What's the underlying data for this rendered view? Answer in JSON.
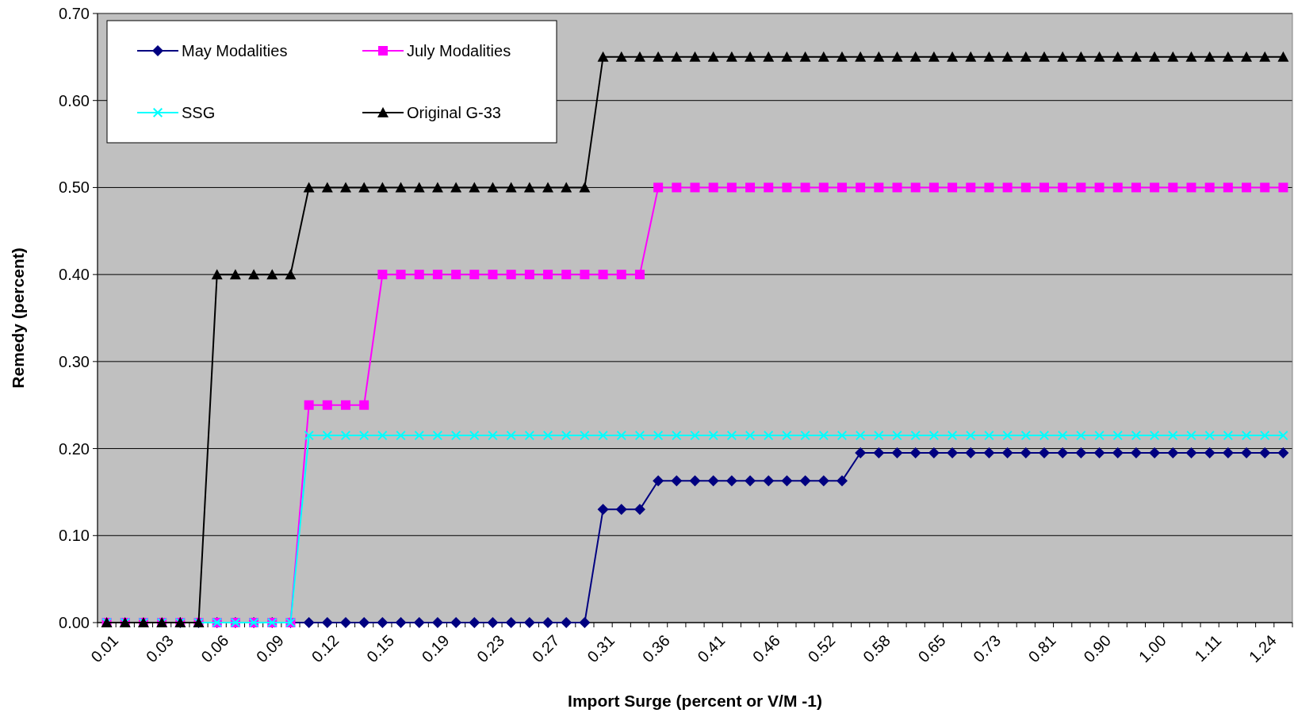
{
  "chart_data": {
    "type": "line",
    "xlabel": "Import Surge (percent or V/M -1)",
    "ylabel": "Remedy (percent)",
    "categories": [
      "0.01",
      null,
      null,
      "0.03",
      null,
      null,
      "0.06",
      null,
      null,
      "0.09",
      null,
      null,
      "0.12",
      null,
      null,
      "0.15",
      null,
      null,
      "0.19",
      null,
      null,
      "0.23",
      null,
      null,
      "0.27",
      null,
      null,
      "0.31",
      null,
      null,
      "0.36",
      null,
      null,
      "0.41",
      null,
      null,
      "0.46",
      null,
      null,
      "0.52",
      null,
      null,
      "0.58",
      null,
      null,
      "0.65",
      null,
      null,
      "0.73",
      null,
      null,
      "0.81",
      null,
      null,
      "0.90",
      null,
      null,
      "1.00",
      null,
      null,
      "1.11",
      null,
      null,
      "1.24",
      null
    ],
    "ylim": [
      0,
      0.7
    ],
    "yticks": [
      {
        "value": 0,
        "label": "0.00"
      },
      {
        "value": 0.1,
        "label": "0.10"
      },
      {
        "value": 0.2,
        "label": "0.20"
      },
      {
        "value": 0.3,
        "label": "0.30"
      },
      {
        "value": 0.4,
        "label": "0.40"
      },
      {
        "value": 0.5,
        "label": "0.50"
      },
      {
        "value": 0.6,
        "label": "0.60"
      },
      {
        "value": 0.7,
        "label": "0.70"
      }
    ],
    "grid": "y",
    "legend": "top left",
    "series": [
      {
        "name": "May Modalities",
        "color": "#000080",
        "marker": "diamond",
        "values": [
          null,
          null,
          null,
          null,
          0,
          0,
          0,
          0,
          0,
          0,
          0,
          0,
          0,
          0,
          0,
          0,
          0,
          0,
          0,
          0,
          0,
          0,
          0,
          0,
          0,
          0,
          0,
          0.13,
          0.13,
          0.13,
          0.163,
          0.163,
          0.163,
          0.163,
          0.163,
          0.163,
          0.163,
          0.163,
          0.163,
          0.163,
          0.163,
          0.195,
          0.195,
          0.195,
          0.195,
          0.195,
          0.195,
          0.195,
          0.195,
          0.195,
          0.195,
          0.195,
          0.195,
          0.195,
          0.195,
          0.195,
          0.195,
          0.195,
          0.195,
          0.195,
          0.195,
          0.195,
          0.195,
          0.195,
          0.195
        ]
      },
      {
        "name": "July Modalities",
        "color": "#ff00ff",
        "marker": "square",
        "values": [
          0,
          0,
          0,
          0,
          0,
          0,
          0,
          0,
          0,
          0,
          0,
          0.25,
          0.25,
          0.25,
          0.25,
          0.4,
          0.4,
          0.4,
          0.4,
          0.4,
          0.4,
          0.4,
          0.4,
          0.4,
          0.4,
          0.4,
          0.4,
          0.4,
          0.4,
          0.4,
          0.5,
          0.5,
          0.5,
          0.5,
          0.5,
          0.5,
          0.5,
          0.5,
          0.5,
          0.5,
          0.5,
          0.5,
          0.5,
          0.5,
          0.5,
          0.5,
          0.5,
          0.5,
          0.5,
          0.5,
          0.5,
          0.5,
          0.5,
          0.5,
          0.5,
          0.5,
          0.5,
          0.5,
          0.5,
          0.5,
          0.5,
          0.5,
          0.5,
          0.5,
          0.5
        ]
      },
      {
        "name": "SSG",
        "color": "#00ffff",
        "marker": "cross",
        "values": [
          0,
          0,
          0,
          0,
          0,
          0,
          0,
          0,
          0,
          0,
          0,
          0.215,
          0.215,
          0.215,
          0.215,
          0.215,
          0.215,
          0.215,
          0.215,
          0.215,
          0.215,
          0.215,
          0.215,
          0.215,
          0.215,
          0.215,
          0.215,
          0.215,
          0.215,
          0.215,
          0.215,
          0.215,
          0.215,
          0.215,
          0.215,
          0.215,
          0.215,
          0.215,
          0.215,
          0.215,
          0.215,
          0.215,
          0.215,
          0.215,
          0.215,
          0.215,
          0.215,
          0.215,
          0.215,
          0.215,
          0.215,
          0.215,
          0.215,
          0.215,
          0.215,
          0.215,
          0.215,
          0.215,
          0.215,
          0.215,
          0.215,
          0.215,
          0.215,
          0.215,
          0.215
        ]
      },
      {
        "name": "Original G-33",
        "color": "#000000",
        "marker": "triangle",
        "values": [
          0,
          0,
          0,
          0,
          0,
          0,
          0.4,
          0.4,
          0.4,
          0.4,
          0.4,
          0.5,
          0.5,
          0.5,
          0.5,
          0.5,
          0.5,
          0.5,
          0.5,
          0.5,
          0.5,
          0.5,
          0.5,
          0.5,
          0.5,
          0.5,
          0.5,
          0.65,
          0.65,
          0.65,
          0.65,
          0.65,
          0.65,
          0.65,
          0.65,
          0.65,
          0.65,
          0.65,
          0.65,
          0.65,
          0.65,
          0.65,
          0.65,
          0.65,
          0.65,
          0.65,
          0.65,
          0.65,
          0.65,
          0.65,
          0.65,
          0.65,
          0.65,
          0.65,
          0.65,
          0.65,
          0.65,
          0.65,
          0.65,
          0.65,
          0.65,
          0.65,
          0.65,
          0.65,
          0.65
        ]
      }
    ]
  }
}
